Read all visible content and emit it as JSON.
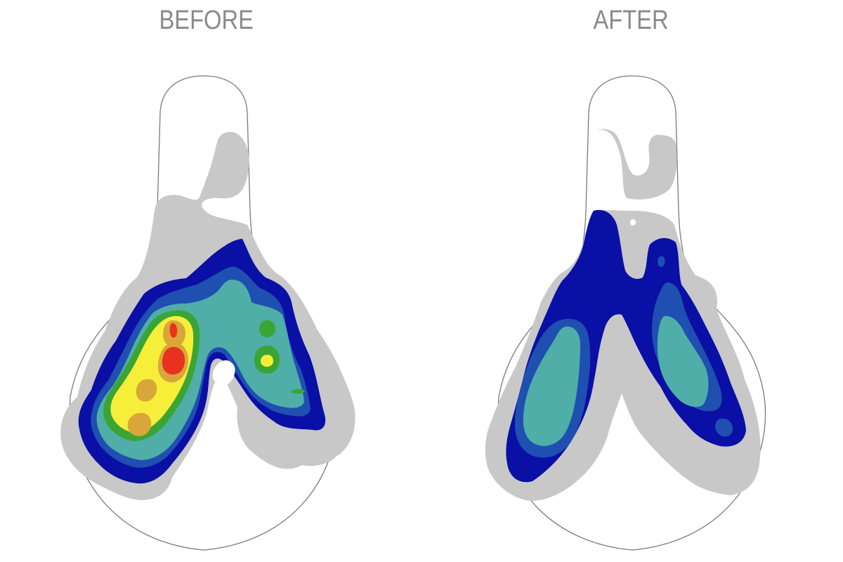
{
  "panels": {
    "before": {
      "label": "BEFORE"
    },
    "after": {
      "label": "AFTER"
    }
  },
  "colors": {
    "outline": "#7a7a7a",
    "level_0_gray": "#c8c8c8",
    "level_1_dark_blue": "#0a0fa5",
    "level_2_blue": "#1f4fb0",
    "level_3_teal": "#4faea8",
    "level_4_green": "#3aa534",
    "level_5_yellow": "#f7ee3a",
    "level_6_orange": "#d9a63a",
    "level_7_red": "#e8321e"
  }
}
